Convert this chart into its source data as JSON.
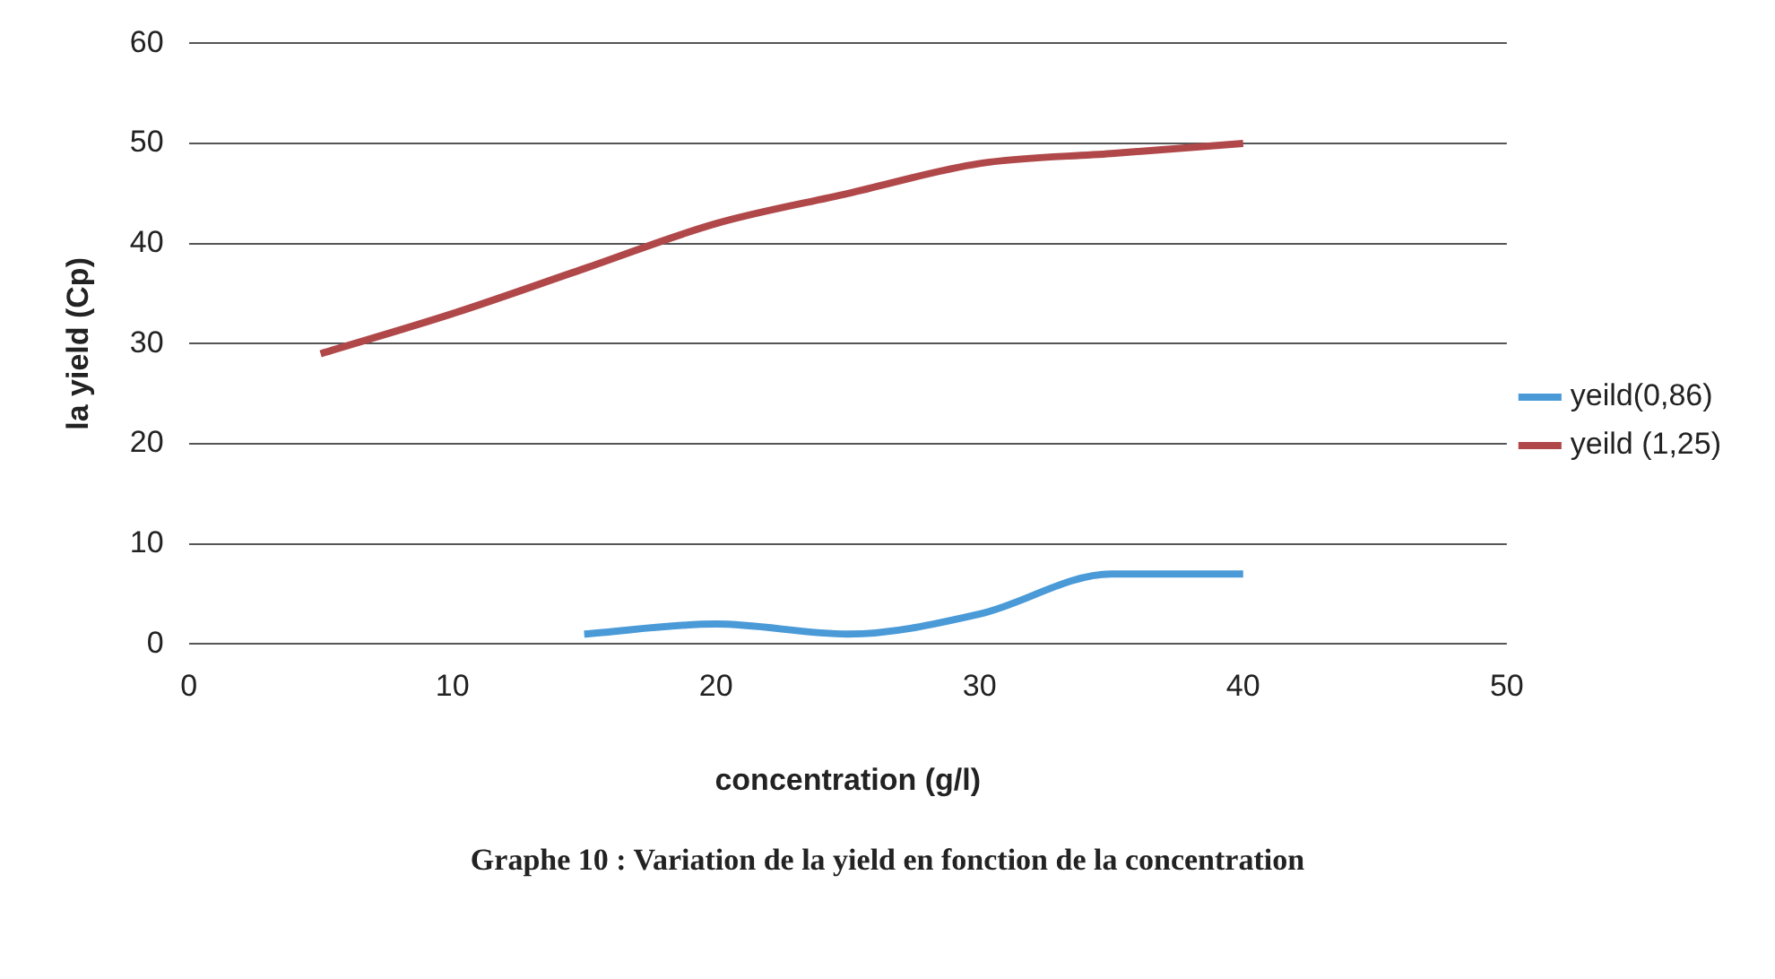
{
  "chart_data": {
    "type": "line",
    "xlabel": "concentration (g/l)",
    "ylabel": "la yield (Cp)",
    "xlim": [
      0,
      50
    ],
    "xticks": [
      0,
      10,
      20,
      30,
      40,
      50
    ],
    "ylim": [
      0,
      60
    ],
    "yticks": [
      0,
      10,
      20,
      30,
      40,
      50,
      60
    ],
    "grid": "y",
    "legend": "right",
    "marker": "none",
    "line_style": "solid",
    "series": [
      {
        "name": "yeild(0,86)",
        "color": "#4a9ad8",
        "x": [
          15,
          20,
          25,
          30,
          35,
          40
        ],
        "values": [
          1,
          2,
          1,
          3,
          7,
          7
        ]
      },
      {
        "name": "yeild (1,25)",
        "color": "#b0484a",
        "x": [
          5,
          10,
          15,
          20,
          25,
          30,
          35,
          40
        ],
        "values": [
          29,
          33,
          37.5,
          42,
          45,
          48,
          49,
          50
        ]
      }
    ],
    "annotations": [
      "Graphe 10 : Variation de la yield en fonction de la concentration"
    ]
  }
}
